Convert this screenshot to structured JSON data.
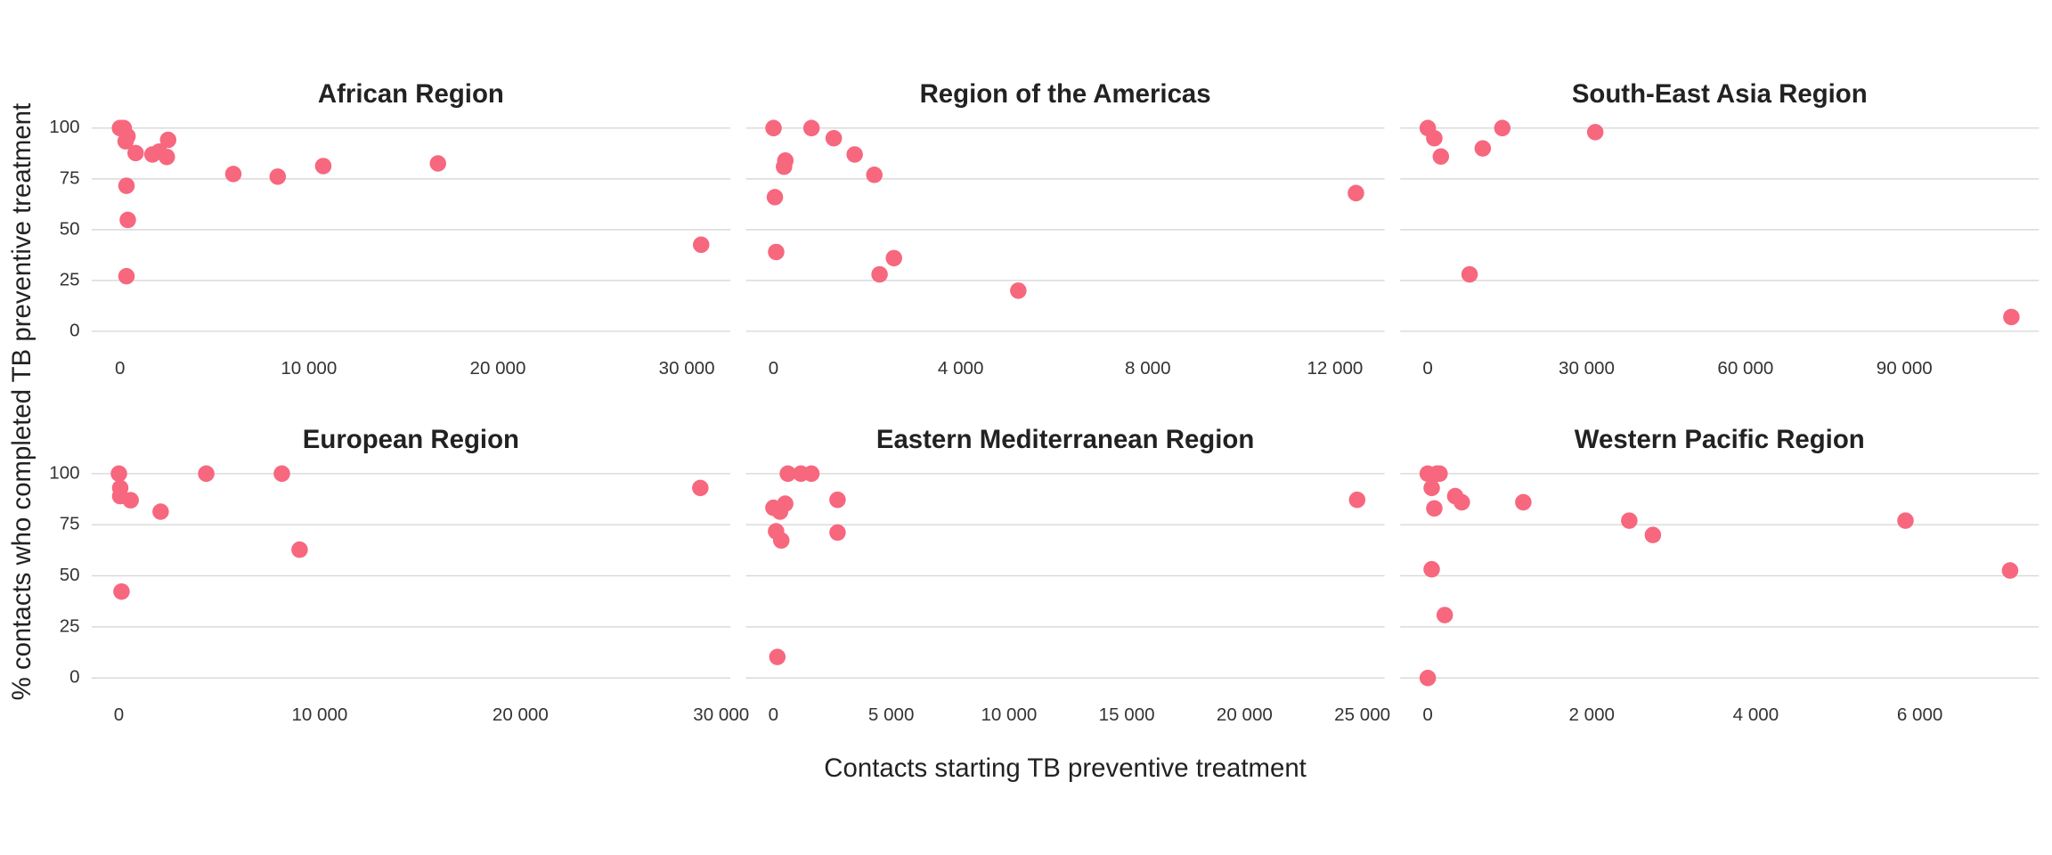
{
  "ylabel": "% contacts who completed TB preventive treatment",
  "xlabel": "Contacts starting TB preventive treatment",
  "chart_data": [
    {
      "type": "scatter",
      "title": "African Region",
      "color": "#f7677e",
      "x": [
        0,
        200,
        400,
        300,
        830,
        1720,
        2070,
        2550,
        2480,
        6000,
        8350,
        10760,
        16830,
        30760,
        345,
        415,
        345
      ],
      "values": [
        100,
        100,
        96,
        93.5,
        87.7,
        87,
        88.4,
        94.2,
        85.8,
        77.4,
        76.1,
        81.3,
        82.6,
        42.6,
        71.6,
        54.8,
        27.1
      ],
      "xlim": [
        -1500,
        32300
      ],
      "ylim": [
        -7,
        107
      ],
      "xticks": [
        0,
        {
          "value": 10000,
          "label": "10 000"
        },
        {
          "value": 20000,
          "label": "20 000"
        },
        {
          "value": 30000,
          "label": "30 000"
        }
      ],
      "yticks": [
        0,
        25,
        50,
        75,
        100
      ]
    },
    {
      "type": "scatter",
      "title": "Region of the Americas",
      "color": "#f7677e",
      "x": [
        0,
        811,
        1287,
        1734,
        2154,
        224,
        252,
        28,
        56,
        2266,
        2573,
        5231,
        12448
      ],
      "values": [
        100,
        100,
        95,
        87,
        77,
        81,
        84,
        66,
        39,
        28,
        36,
        20,
        68
      ],
      "xlim": [
        -590,
        13060
      ],
      "ylim": [
        -7,
        107
      ],
      "xticks": [
        0,
        {
          "value": 4000,
          "label": "4 000"
        },
        {
          "value": 8000,
          "label": "8 000"
        },
        {
          "value": 12000,
          "label": "12 000"
        }
      ],
      "yticks": [
        0,
        25,
        50,
        75,
        100
      ]
    },
    {
      "type": "scatter",
      "title": "South-East Asia Region",
      "color": "#f7677e",
      "x": [
        0,
        1235,
        2470,
        10380,
        14080,
        31630,
        7900,
        110200
      ],
      "values": [
        100,
        95,
        86,
        90,
        100,
        98,
        28,
        7
      ],
      "xlim": [
        -5190,
        115400
      ],
      "ylim": [
        -7,
        107
      ],
      "xticks": [
        0,
        {
          "value": 30000,
          "label": "30 000"
        },
        {
          "value": 60000,
          "label": "60 000"
        },
        {
          "value": 90000,
          "label": "90 000"
        }
      ],
      "yticks": [
        0,
        25,
        50,
        75,
        100
      ]
    },
    {
      "type": "scatter",
      "title": "European Region",
      "color": "#f7677e",
      "x": [
        0,
        65,
        65,
        584,
        2078,
        4350,
        8117,
        9000,
        130,
        28960
      ],
      "values": [
        100,
        93,
        89,
        87,
        81.4,
        100,
        100,
        62.8,
        42.3,
        93
      ],
      "xlim": [
        -1360,
        30450
      ],
      "ylim": [
        -7,
        107
      ],
      "xticks": [
        0,
        {
          "value": 10000,
          "label": "10 000"
        },
        {
          "value": 20000,
          "label": "20 000"
        },
        {
          "value": 30000,
          "label": "30 000"
        }
      ],
      "yticks": [
        0,
        25,
        50,
        75,
        100
      ]
    },
    {
      "type": "scatter",
      "title": "Eastern Mediterranean Region",
      "color": "#f7677e",
      "x": [
        611,
        1167,
        1611,
        0,
        278,
        500,
        2722,
        2722,
        111,
        333,
        167,
        24780
      ],
      "values": [
        100,
        100,
        100,
        83.3,
        81.4,
        85.3,
        87.2,
        71.2,
        71.8,
        67.3,
        10.3,
        87.2
      ],
      "xlim": [
        -1167,
        25944
      ],
      "ylim": [
        -7,
        107
      ],
      "xticks": [
        0,
        {
          "value": 5000,
          "label": "5 000"
        },
        {
          "value": 10000,
          "label": "10 000"
        },
        {
          "value": 15000,
          "label": "15 000"
        },
        {
          "value": 20000,
          "label": "20 000"
        },
        {
          "value": 25000,
          "label": "25 000"
        }
      ],
      "yticks": [
        0,
        25,
        50,
        75,
        100
      ]
    },
    {
      "type": "scatter",
      "title": "Western Pacific Region",
      "color": "#f7677e",
      "x": [
        0,
        112,
        144,
        48,
        80,
        48,
        207,
        0,
        335,
        415,
        1165,
        2457,
        2745,
        5825,
        7100
      ],
      "values": [
        100,
        100,
        100,
        93,
        83,
        53.2,
        30.8,
        0,
        89,
        86,
        86,
        77,
        70,
        77,
        52.6
      ],
      "xlim": [
        -335,
        7452
      ],
      "ylim": [
        -7,
        107
      ],
      "xticks": [
        0,
        {
          "value": 2000,
          "label": "2 000"
        },
        {
          "value": 4000,
          "label": "4 000"
        },
        {
          "value": 6000,
          "label": "6 000"
        }
      ],
      "yticks": [
        0,
        25,
        50,
        75,
        100
      ]
    }
  ]
}
